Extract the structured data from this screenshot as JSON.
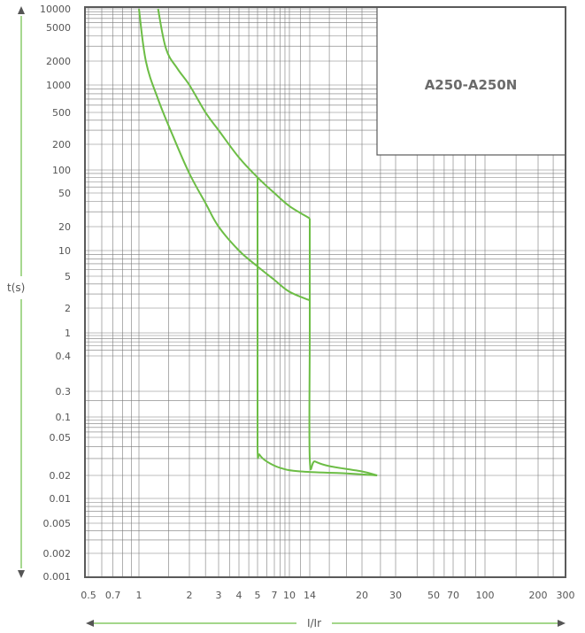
{
  "chart_data": {
    "type": "line",
    "title": "A250-A250N",
    "xlabel": "I/Ir",
    "ylabel": "t(s)",
    "x_scale": "log",
    "y_scale": "log",
    "x_tick_labels": [
      "0.5",
      "0.7",
      "1",
      "2",
      "3",
      "4",
      "5",
      "7",
      "10",
      "14",
      "20",
      "30",
      "50",
      "70",
      "100",
      "200",
      "300"
    ],
    "y_tick_labels": [
      "10000",
      "5000",
      "2000",
      "1000",
      "500",
      "200",
      "100",
      "50",
      "20",
      "10",
      "5",
      "2",
      "1",
      "0.4",
      "0.3",
      "0.1",
      "0.05",
      "0.02",
      "0.01",
      "0.005",
      "0.002",
      "0.001"
    ],
    "grid": true,
    "series": [
      {
        "points": [
          [
            1.0,
            10000
          ],
          [
            1.1,
            2000
          ],
          [
            1.3,
            700
          ],
          [
            1.6,
            250
          ],
          [
            2.0,
            90
          ],
          [
            2.5,
            38
          ],
          [
            3.0,
            20
          ],
          [
            4.0,
            10
          ],
          [
            5.0,
            6.5
          ],
          [
            7.0,
            4.5
          ],
          [
            10.0,
            3.2
          ],
          [
            14.0,
            2.5
          ]
        ]
      },
      {
        "points": [
          [
            1.3,
            10000
          ],
          [
            1.45,
            2800
          ],
          [
            1.7,
            1600
          ],
          [
            2.0,
            1000
          ],
          [
            2.5,
            500
          ],
          [
            3.0,
            300
          ],
          [
            4.0,
            140
          ],
          [
            5.0,
            80
          ],
          [
            7.0,
            50
          ],
          [
            10.0,
            35
          ],
          [
            14.0,
            25
          ]
        ]
      },
      {
        "points": [
          [
            5.0,
            80
          ],
          [
            5.0,
            1.0
          ],
          [
            5.0,
            0.04
          ],
          [
            5.2,
            0.033
          ],
          [
            6.0,
            0.028
          ],
          [
            8.0,
            0.024
          ],
          [
            12.0,
            0.022
          ],
          [
            18.0,
            0.021
          ],
          [
            24.0,
            0.02
          ]
        ]
      },
      {
        "points": [
          [
            14.0,
            25
          ],
          [
            14.0,
            1.0
          ],
          [
            14.0,
            0.03
          ],
          [
            14.5,
            0.028
          ],
          [
            16.0,
            0.025
          ],
          [
            20.0,
            0.022
          ],
          [
            24.0,
            0.02
          ]
        ]
      }
    ],
    "colors": {
      "curve": "#6cbd45",
      "grid": "#7a7a7a",
      "frame": "#5a5a5a",
      "text": "#555555"
    }
  }
}
